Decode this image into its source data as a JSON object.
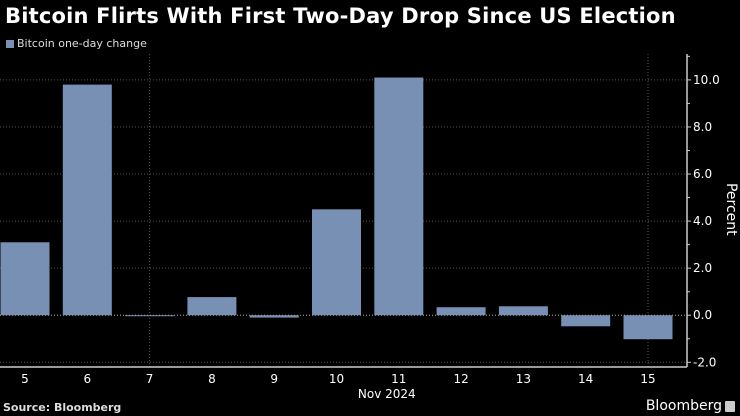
{
  "chart_data": {
    "type": "bar",
    "title": "Bitcoin Flirts With First Two-Day Drop Since US Election",
    "xlabel": "Nov 2024",
    "ylabel": "Percent",
    "categories": [
      "5",
      "6",
      "7",
      "8",
      "9",
      "10",
      "11",
      "12",
      "13",
      "14",
      "15"
    ],
    "series": [
      {
        "name": "Bitcoin one-day change",
        "values": [
          3.1,
          9.8,
          -0.02,
          0.77,
          -0.1,
          4.5,
          10.1,
          0.34,
          0.38,
          -0.47,
          -1.02
        ],
        "color": "#7790b4"
      }
    ],
    "yticks": [
      "-2.0",
      "0.0",
      "2.0",
      "4.0",
      "6.0",
      "8.0",
      "10.0"
    ],
    "ylim": [
      -2.2,
      11.1
    ],
    "grid": true,
    "legend_position": "top-left"
  },
  "footer": {
    "source": "Source: Bloomberg",
    "brand": "Bloomberg"
  }
}
